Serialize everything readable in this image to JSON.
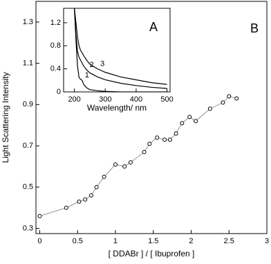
{
  "chart_data": [
    {
      "type": "scatter",
      "panel_label": "B",
      "ylabel": "Light Scattering Intensity",
      "xlabel": "[ DDABr ] / [ Ibuprofen ]",
      "x": [
        0,
        0.35,
        0.52,
        0.6,
        0.68,
        0.75,
        0.85,
        1.0,
        1.12,
        1.2,
        1.38,
        1.45,
        1.55,
        1.65,
        1.72,
        1.8,
        1.88,
        1.98,
        2.06,
        2.25,
        2.42,
        2.5,
        2.6
      ],
      "values": [
        0.36,
        0.4,
        0.43,
        0.44,
        0.46,
        0.5,
        0.55,
        0.61,
        0.6,
        0.62,
        0.67,
        0.71,
        0.74,
        0.73,
        0.73,
        0.76,
        0.81,
        0.84,
        0.82,
        0.88,
        0.91,
        0.94,
        0.93
      ],
      "color": "#000000",
      "line_color": "#777777",
      "xlim": [
        -0.05,
        3.0
      ],
      "ylim": [
        0.275,
        1.4
      ],
      "xticks": [
        0,
        0.5,
        1,
        1.5,
        2,
        2.5,
        3
      ],
      "yticks": [
        0.3,
        0.5,
        0.7,
        0.9,
        1.1,
        1.3
      ]
    },
    {
      "type": "line",
      "panel_label": "A",
      "xlabel": "Wavelength/ nm",
      "x": [
        200,
        205,
        210,
        215,
        220,
        225,
        230,
        240,
        250,
        275,
        300,
        350,
        400,
        450,
        500
      ],
      "series": [
        {
          "name": "1",
          "color": "#000000",
          "values": [
            1.45,
            0.9,
            0.45,
            0.25,
            0.22,
            0.2,
            0.13,
            0.07,
            0.04,
            0.02,
            0.01,
            0.0,
            0.0,
            0.0,
            0.0
          ]
        },
        {
          "name": "2",
          "color": "#000000",
          "values": [
            1.45,
            1.0,
            0.7,
            0.6,
            0.55,
            0.5,
            0.45,
            0.38,
            0.33,
            0.26,
            0.21,
            0.15,
            0.11,
            0.08,
            0.06
          ]
        },
        {
          "name": "3",
          "color": "#000000",
          "values": [
            1.45,
            1.2,
            0.95,
            0.8,
            0.72,
            0.68,
            0.63,
            0.55,
            0.48,
            0.4,
            0.34,
            0.26,
            0.21,
            0.16,
            0.13
          ]
        }
      ],
      "xlim": [
        165,
        510
      ],
      "ylim": [
        0,
        1.45
      ],
      "xticks": [
        200,
        300,
        400,
        500
      ],
      "yticks": [
        0,
        0.4,
        0.8,
        1.2
      ]
    }
  ]
}
